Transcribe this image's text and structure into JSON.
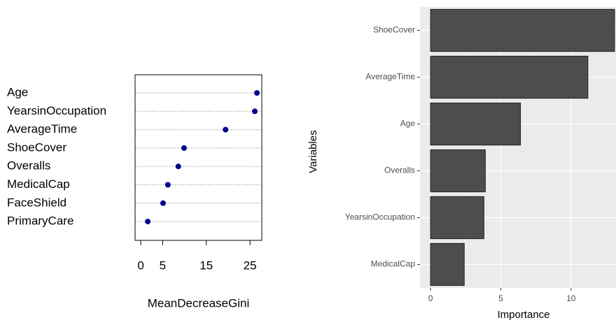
{
  "chart_data": [
    {
      "type": "dot",
      "x_label": "MeanDecreaseGini",
      "categories": [
        "Age",
        "YearsinOccupation",
        "AverageTime",
        "ShoeCover",
        "Overalls",
        "MedicalCap",
        "FaceShield",
        "PrimaryCare"
      ],
      "values": [
        26.6,
        26.1,
        19.4,
        9.9,
        8.6,
        6.2,
        5.1,
        1.6
      ],
      "color": "#00008b",
      "xlim": [
        -1.3,
        27.7
      ],
      "xticks": [
        0,
        5,
        15,
        25
      ],
      "grid": true
    },
    {
      "type": "bar",
      "orientation": "horizontal",
      "x_label": "Importance",
      "y_label": "Variables",
      "categories": [
        "ShoeCover",
        "AverageTime",
        "Age",
        "Overalls",
        "YearsinOccupation",
        "MedicalCap"
      ],
      "values": [
        13.1,
        11.2,
        6.4,
        3.9,
        3.8,
        2.4
      ],
      "color": "#4d4d4d",
      "xlim": [
        -0.75,
        13.2
      ],
      "xticks": [
        0,
        5,
        10
      ],
      "grid": true
    }
  ]
}
